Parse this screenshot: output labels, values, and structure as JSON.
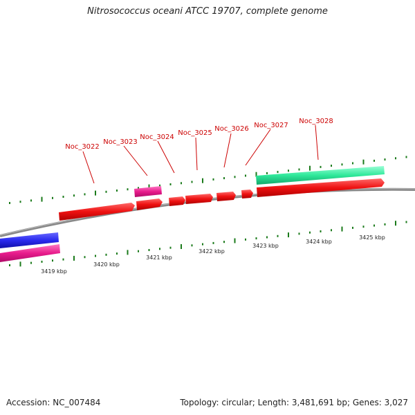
{
  "title": "Nitrosococcus oceani ATCC 19707, complete genome",
  "accession": "Accession: NC_007484",
  "summary": "Topology: circular; Length: 3,481,691 bp; Genes: 3,027",
  "colors": {
    "forward_cds": "#ee1111",
    "forward_other": "#e81c8c",
    "reverse_cds": "#2a2aee",
    "reverse_other": "#e81c8c",
    "highlight": "#2ee89a",
    "backbone": "#888888",
    "ticks": "#1a7a1a",
    "labels": "#cc0000"
  },
  "gene_labels": [
    "Noc_3022",
    "Noc_3023",
    "Noc_3024",
    "Noc_3025",
    "Noc_3026",
    "Noc_3027",
    "Noc_3028"
  ],
  "ruler": [
    "3419 kbp",
    "3420 kbp",
    "3421 kbp",
    "3422 kbp",
    "3423 kbp",
    "3424 kbp",
    "3425 kbp"
  ]
}
